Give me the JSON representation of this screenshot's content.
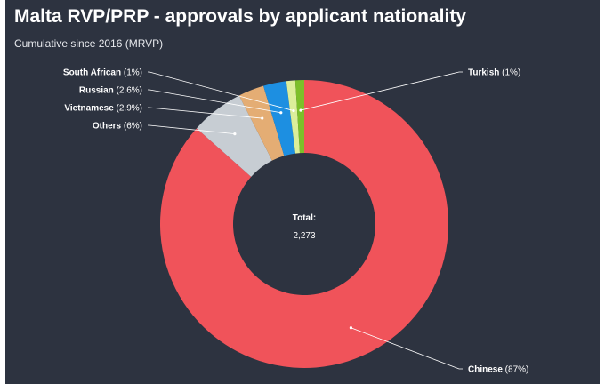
{
  "colors": {
    "background": "#2d3340",
    "chinese": "#f0535a",
    "others": "#c7cdd3",
    "vietnamese": "#e4ad74",
    "russian": "#1d8fe1",
    "south_african": "#dcee9a",
    "turkish": "#7dbf2a",
    "connector": "#ffffff"
  },
  "chart_data": {
    "type": "pie",
    "variant": "donut",
    "title": "Malta RVP/PRP - approvals by applicant nationality",
    "subtitle": "Cumulative since 2016 (MRVP)",
    "center_label": "Total:",
    "center_value": "2,273",
    "slices": [
      {
        "name": "Chinese",
        "label": "(87%)",
        "value": 87,
        "color": "#f0535a"
      },
      {
        "name": "Others",
        "label": "(6%)",
        "value": 6,
        "color": "#c7cdd3"
      },
      {
        "name": "Vietnamese",
        "label": "(2.9%)",
        "value": 2.9,
        "color": "#e4ad74"
      },
      {
        "name": "Russian",
        "label": "(2.6%)",
        "value": 2.6,
        "color": "#1d8fe1"
      },
      {
        "name": "South African",
        "label": "(1%)",
        "value": 1,
        "color": "#dcee9a"
      },
      {
        "name": "Turkish",
        "label": "(1%)",
        "value": 1,
        "color": "#7dbf2a"
      }
    ]
  }
}
